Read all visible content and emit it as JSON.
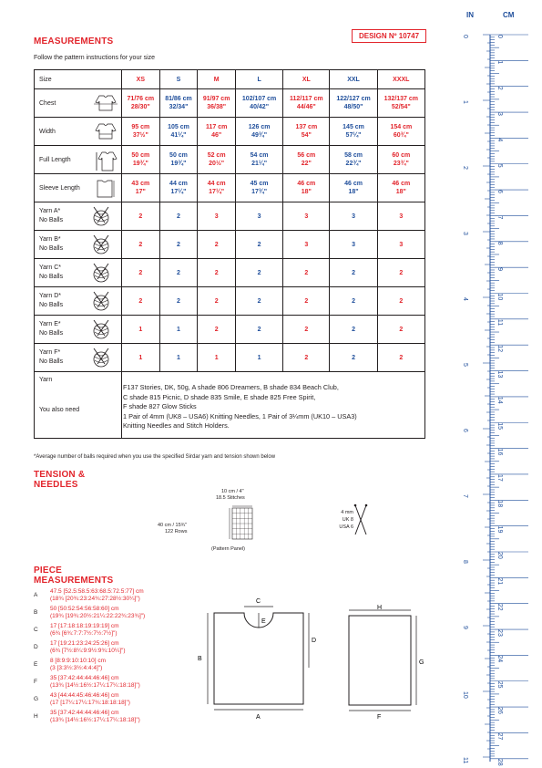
{
  "header": {
    "title": "MEASUREMENTS",
    "design_no": "DESIGN Nº 10747",
    "subtitle": "Follow the pattern instructions for your size"
  },
  "table": {
    "size_label": "Size",
    "sizes": [
      "XS",
      "S",
      "M",
      "L",
      "XL",
      "XXL",
      "XXXL"
    ],
    "size_colors": [
      "red",
      "blue",
      "red",
      "blue",
      "red",
      "blue",
      "red"
    ],
    "rows": [
      {
        "label": "Chest",
        "icon": "chest-diagram-icon",
        "cells": [
          [
            "71/76 cm",
            "28/30\""
          ],
          [
            "81/86 cm",
            "32/34\""
          ],
          [
            "91/97 cm",
            "36/38\""
          ],
          [
            "102/107 cm",
            "40/42\""
          ],
          [
            "112/117 cm",
            "44/46\""
          ],
          [
            "122/127 cm",
            "48/50\""
          ],
          [
            "132/137 cm",
            "52/54\""
          ]
        ]
      },
      {
        "label": "Width",
        "icon": "width-diagram-icon",
        "cells": [
          [
            "95 cm",
            "37½\""
          ],
          [
            "105 cm",
            "41¼\""
          ],
          [
            "117 cm",
            "46\""
          ],
          [
            "126 cm",
            "49¾\""
          ],
          [
            "137 cm",
            "54\""
          ],
          [
            "145 cm",
            "57¼\""
          ],
          [
            "154 cm",
            "60¾\""
          ]
        ]
      },
      {
        "label": "Full Length",
        "icon": "full-length-diagram-icon",
        "cells": [
          [
            "50 cm",
            "19¾\""
          ],
          [
            "50 cm",
            "19¾\""
          ],
          [
            "52 cm",
            "20½\""
          ],
          [
            "54 cm",
            "21¼\""
          ],
          [
            "56 cm",
            "22\""
          ],
          [
            "58 cm",
            "22¾\""
          ],
          [
            "60 cm",
            "23¾\""
          ]
        ]
      },
      {
        "label": "Sleeve Length",
        "icon": "sleeve-length-diagram-icon",
        "cells": [
          [
            "43 cm",
            "17\""
          ],
          [
            "44 cm",
            "17¼\""
          ],
          [
            "44 cm",
            "17¼\""
          ],
          [
            "45 cm",
            "17¾\""
          ],
          [
            "46 cm",
            "18\""
          ],
          [
            "46 cm",
            "18\""
          ],
          [
            "46 cm",
            "18\""
          ]
        ]
      }
    ],
    "yarn_rows": [
      {
        "label1": "Yarn A*",
        "label2": "No Balls",
        "cells": [
          "2",
          "2",
          "3",
          "3",
          "3",
          "3",
          "3"
        ]
      },
      {
        "label1": "Yarn B*",
        "label2": "No Balls",
        "cells": [
          "2",
          "2",
          "2",
          "2",
          "3",
          "3",
          "3"
        ]
      },
      {
        "label1": "Yarn C*",
        "label2": "No Balls",
        "cells": [
          "2",
          "2",
          "2",
          "2",
          "2",
          "2",
          "2"
        ]
      },
      {
        "label1": "Yarn D*",
        "label2": "No Balls",
        "cells": [
          "2",
          "2",
          "2",
          "2",
          "2",
          "2",
          "2"
        ]
      },
      {
        "label1": "Yarn E*",
        "label2": "No Balls",
        "cells": [
          "1",
          "1",
          "2",
          "2",
          "2",
          "2",
          "2"
        ]
      },
      {
        "label1": "Yarn F*",
        "label2": "No Balls",
        "cells": [
          "1",
          "1",
          "1",
          "1",
          "2",
          "2",
          "2"
        ]
      }
    ],
    "yarn_label": "Yarn",
    "also_need_label": "You also need",
    "yarn_lines": [
      "F137 Stories, DK, 50g, A shade 806 Dreamers, B shade 834 Beach Club,",
      "C shade 815 Picnic, D shade 835 Smile, E shade 825 Free Spirit,",
      "F shade 827 Glow Sticks",
      "1 Pair of 4mm (UK8 – USA6) Knitting Needles, 1 Pair of 3¼mm (UK10 – USA3)",
      "Knitting Needles and Stitch Holders."
    ]
  },
  "footnote": "*Average number of balls required when you use the specified Sirdar yarn and tension shown below",
  "tension": {
    "title1": "TENSION &",
    "title2": "NEEDLES",
    "top1": "10 cm / 4\"",
    "top2": "18.5 Stitches",
    "left1": "40 cm / 15¾\"",
    "left2": "122 Rows",
    "bottom": "(Pattern Panel)",
    "needle1": "4 mm",
    "needle2": "UK 8",
    "needle3": "USA 6"
  },
  "piece": {
    "title1": "PIECE",
    "title2": "MEASUREMENTS",
    "items": [
      {
        "letter": "A",
        "line1": "47.5 [52.5:58.5:63:68.5:72.5:77] cm",
        "line2": "(18¾ [20¾:23:24¾:27:28½:30¼]\")"
      },
      {
        "letter": "B",
        "line1": "50 [50:52:54:56:58:60] cm",
        "line2": "(19¾ [19¾:20½:21¼:22:22¾:23¾]\")"
      },
      {
        "letter": "C",
        "line1": "17 [17:18:18:19:19:19] cm",
        "line2": "(6¾ [6¾:7:7:7½:7½:7½]\")"
      },
      {
        "letter": "D",
        "line1": "17 [19:21:23:24:25:26] cm",
        "line2": "(6¾ [7½:8¼:9:9½:9¾:10¼]\")"
      },
      {
        "letter": "E",
        "line1": "8 [8:9:9:10:10:10] cm",
        "line2": "(3 [3:3½:3½:4:4:4]\")"
      },
      {
        "letter": "F",
        "line1": "35 [37:42:44:44:46:46] cm",
        "line2": "(13¾ [14½:16½:17¼:17¼:18:18]\")"
      },
      {
        "letter": "G",
        "line1": "43 [44:44:45:46:46:46] cm",
        "line2": "(17 [17¼:17¼:17¾:18:18:18]\")"
      },
      {
        "letter": "H",
        "line1": "35 [37:42:44:44:46:46] cm",
        "line2": "(13¾ [14½:16½:17¼:17¼:18:18]\")"
      }
    ],
    "diagram_labels": {
      "a": "A",
      "b": "B",
      "c": "C",
      "d": "D",
      "e": "E",
      "f": "F",
      "g": "G",
      "h": "H"
    }
  },
  "ruler": {
    "in_label": "IN",
    "cm_label": "CM",
    "inches": [
      "0",
      "1",
      "2",
      "3",
      "4",
      "5",
      "6",
      "7",
      "8",
      "9",
      "10",
      "11"
    ],
    "cm": [
      "0",
      "1",
      "2",
      "3",
      "4",
      "5",
      "6",
      "7",
      "8",
      "9",
      "10",
      "11",
      "12",
      "13",
      "14",
      "15",
      "16",
      "17",
      "18",
      "19",
      "20",
      "21",
      "22",
      "23",
      "24",
      "25",
      "26",
      "27",
      "28"
    ],
    "color": "#1f4e9b"
  },
  "colors": {
    "red": "#e2252c",
    "blue": "#1f4e9b"
  }
}
